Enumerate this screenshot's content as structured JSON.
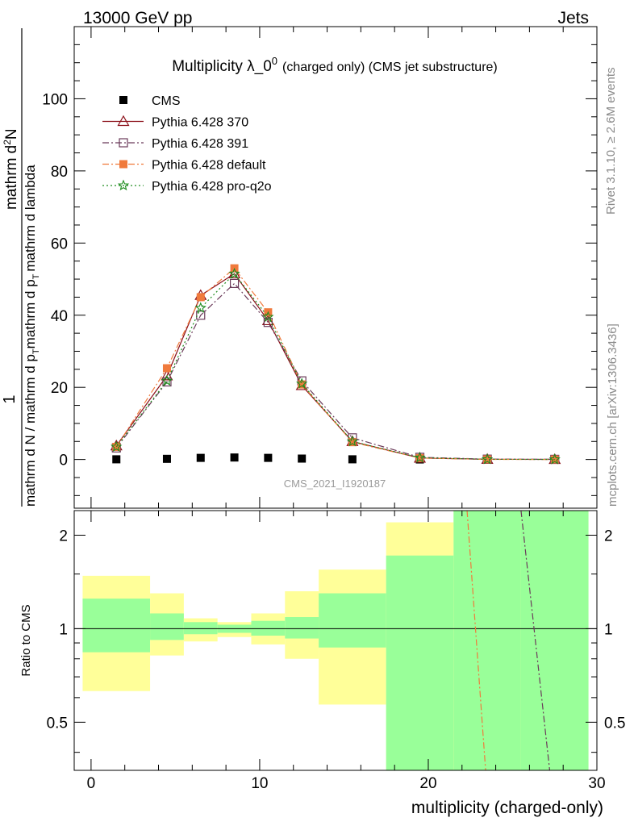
{
  "header": {
    "left": "13000 GeV pp",
    "right": "Jets"
  },
  "title": {
    "main": "Multiplicity λ_0",
    "superscript": "0",
    "suffix": "(charged only) (CMS jet substructure)"
  },
  "side_labels": {
    "top": "Rivet 3.1.10, ≥ 2.6M events",
    "bottom": "mcplots.cern.ch [arXiv:1306.3436]"
  },
  "watermark": "CMS_2021_I1920187",
  "axes": {
    "ylabel_main": {
      "prefix": "1",
      "numerator": "mathrm d",
      "numerator_sup": "2",
      "numerator_end": "N",
      "denominator": "mathrm d N / mathrm d p",
      "denominator_sub": "T",
      "denominator_end": "mathrm d p",
      "denominator_sub2": "T",
      "denominator_tail": "mathrm d lambda"
    },
    "ylabel_ratio": "Ratio to CMS",
    "xlabel": "multiplicity (charged-only)",
    "main_yticks": [
      "0",
      "20",
      "40",
      "60",
      "80",
      "100"
    ],
    "ratio_yticks": [
      "0.5",
      "1",
      "2"
    ],
    "xticks": [
      "0",
      "10",
      "20",
      "30"
    ]
  },
  "legend": [
    {
      "label": "CMS",
      "color": "#000000",
      "marker": "filled-square",
      "line": "none"
    },
    {
      "label": "Pythia 6.428 370",
      "color": "#8b0f18",
      "marker": "open-triangle",
      "line": "solid"
    },
    {
      "label": "Pythia 6.428 391",
      "color": "#6b3b5a",
      "marker": "open-square",
      "line": "dashdot"
    },
    {
      "label": "Pythia 6.428 default",
      "color": "#f07a3c",
      "marker": "filled-square",
      "line": "dashdot"
    },
    {
      "label": "Pythia 6.428 pro-q2o",
      "color": "#1e8c1e",
      "marker": "star",
      "line": "dotted"
    }
  ],
  "chart_data": {
    "type": "line",
    "xlim": [
      -1,
      30
    ],
    "ylim_main": [
      -13.5,
      120
    ],
    "ylim_ratio": [
      0.35,
      2.4
    ],
    "log_ratio": true,
    "bins": [
      [
        -0.5,
        3.5
      ],
      [
        3.5,
        5.5
      ],
      [
        5.5,
        7.5
      ],
      [
        7.5,
        9.5
      ],
      [
        9.5,
        11.5
      ],
      [
        11.5,
        13.5
      ],
      [
        13.5,
        17.5
      ],
      [
        17.5,
        21.5
      ],
      [
        21.5,
        25.5
      ],
      [
        25.5,
        29.5
      ]
    ],
    "x": [
      1.5,
      4.5,
      6.5,
      8.5,
      10.5,
      12.5,
      15.5,
      19.5,
      23.5,
      27.5
    ],
    "series": [
      {
        "name": "CMS",
        "values": [
          0.05,
          0.18,
          0.45,
          0.55,
          0.45,
          0.25,
          0.05,
          0.01,
          0.001,
          0.0005
        ]
      },
      {
        "name": "Pythia 6.428 370",
        "values": [
          3.8,
          23.2,
          45.5,
          51.5,
          38.5,
          20.5,
          5.0,
          0.4,
          0.05,
          0.02
        ]
      },
      {
        "name": "Pythia 6.428 391",
        "values": [
          3.2,
          21.5,
          40.0,
          48.8,
          38.0,
          21.8,
          6.0,
          0.6,
          0.1,
          0.05
        ]
      },
      {
        "name": "Pythia 6.428 default",
        "values": [
          3.5,
          25.3,
          45.0,
          53.0,
          40.8,
          20.8,
          4.8,
          0.4,
          0.04,
          0.01
        ]
      },
      {
        "name": "Pythia 6.428 pro-q2o",
        "values": [
          3.5,
          21.8,
          42.0,
          51.5,
          39.5,
          21.0,
          5.0,
          0.5,
          0.05,
          0.02
        ]
      }
    ],
    "ratio_bands": {
      "inner": [
        [
          0.84,
          1.25
        ],
        [
          0.92,
          1.12
        ],
        [
          0.96,
          1.05
        ],
        [
          0.97,
          1.03
        ],
        [
          0.95,
          1.06
        ],
        [
          0.93,
          1.09
        ],
        [
          0.87,
          1.3
        ],
        [
          0.35,
          1.72
        ],
        [
          0.35,
          2.4
        ],
        [
          0.35,
          2.4
        ]
      ],
      "outer": [
        [
          0.63,
          1.48
        ],
        [
          0.82,
          1.3
        ],
        [
          0.91,
          1.08
        ],
        [
          0.94,
          1.05
        ],
        [
          0.89,
          1.12
        ],
        [
          0.8,
          1.32
        ],
        [
          0.57,
          1.55
        ],
        [
          0.35,
          2.2
        ],
        [
          0.35,
          2.4
        ],
        [
          0.35,
          2.4
        ]
      ]
    },
    "ratio_lines": [
      {
        "name": "Pythia 6.428 default",
        "points": [
          [
            22.3,
            2.4
          ],
          [
            23.4,
            0.35
          ]
        ]
      },
      {
        "name": "Pythia 6.428 391",
        "points": [
          [
            25.5,
            2.4
          ],
          [
            27.2,
            0.35
          ]
        ]
      }
    ],
    "ratio_reference": 1,
    "grid": false,
    "legend_placement": "top-left"
  },
  "colors": {
    "band_inner": "#99ff99",
    "band_outer": "#ffff99"
  }
}
